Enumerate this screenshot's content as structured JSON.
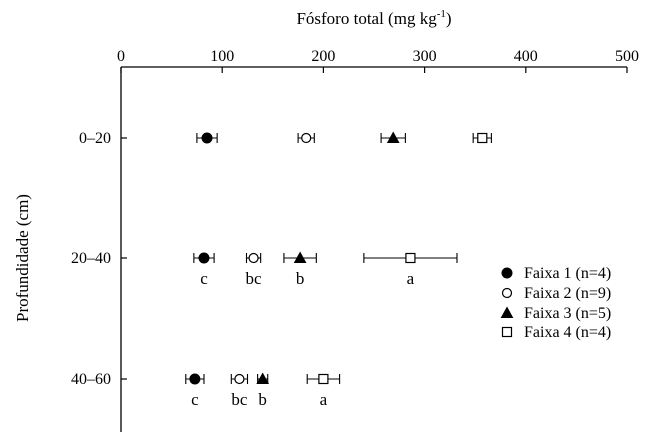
{
  "chart_data": {
    "type": "scatter",
    "orientation": "horizontal",
    "title": "",
    "xlabel": "Fósforo total (mg kg",
    "xlabel_sup": "-1",
    "xlabel_close": ")",
    "ylabel": "Profundidade (cm)",
    "xlim": [
      0,
      500
    ],
    "xticks": [
      0,
      100,
      200,
      300,
      400,
      500
    ],
    "x_axis_position": "top",
    "categories": [
      "0–20",
      "20–40",
      "40–60"
    ],
    "grid": false,
    "legend_position": "right",
    "series": [
      {
        "name": "Faixa 1 (n=4)",
        "marker": "filled-circle",
        "values": [
          85,
          82,
          73
        ],
        "errors": [
          10,
          10,
          9
        ],
        "letters": [
          "",
          "c",
          "c"
        ]
      },
      {
        "name": "Faixa 2 (n=9)",
        "marker": "open-circle",
        "values": [
          183,
          131,
          117
        ],
        "errors": [
          8,
          7,
          8
        ],
        "letters": [
          "",
          "bc",
          "bc"
        ]
      },
      {
        "name": "Faixa 3 (n=5)",
        "marker": "filled-triangle",
        "values": [
          269,
          177,
          140
        ],
        "errors": [
          12,
          16,
          5
        ],
        "letters": [
          "",
          "b",
          "b"
        ]
      },
      {
        "name": "Faixa 4 (n=4)",
        "marker": "open-square",
        "values": [
          357,
          286,
          200
        ],
        "errors": [
          9,
          46,
          16
        ],
        "letters": [
          "",
          "a",
          "a"
        ]
      }
    ]
  }
}
